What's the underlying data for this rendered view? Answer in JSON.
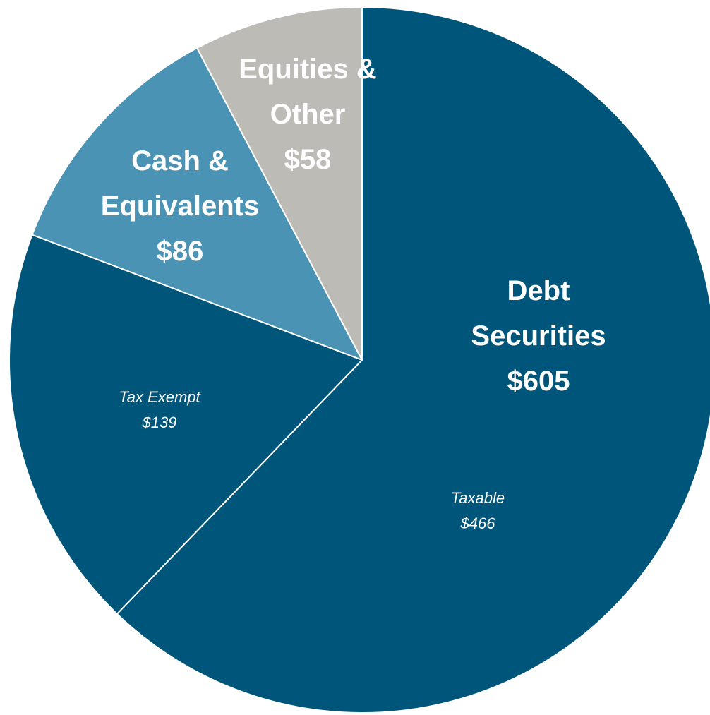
{
  "chart_data": {
    "type": "pie",
    "categories": [
      "Taxable",
      "Tax Exempt",
      "Cash & Equivalents",
      "Equities & Other"
    ],
    "values": [
      466,
      139,
      86,
      58
    ],
    "value_labels": [
      "$466",
      "$139",
      "$86",
      "$58"
    ],
    "colors": [
      "#00567a",
      "#00567a",
      "#4a93b5",
      "#bdbbb6"
    ],
    "groups": [
      {
        "name": "Debt Securities",
        "value": 605,
        "value_label": "$605"
      }
    ]
  }
}
